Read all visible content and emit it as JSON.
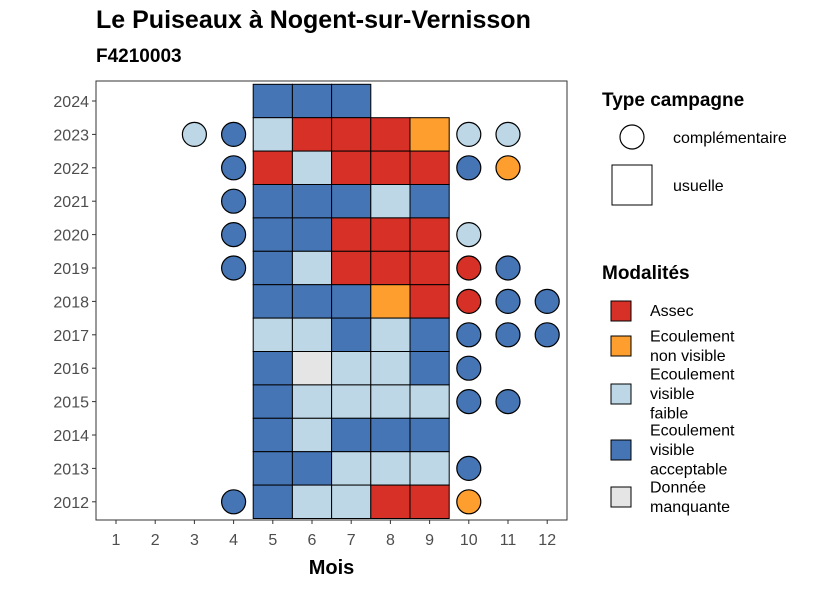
{
  "chart_data": {
    "type": "heatmap",
    "title": "Le Puiseaux à Nogent-sur-Vernisson",
    "subtitle": "F4210003",
    "xlabel": "Mois",
    "ylabel": "",
    "x_ticks": [
      "1",
      "2",
      "3",
      "4",
      "5",
      "6",
      "7",
      "8",
      "9",
      "10",
      "11",
      "12"
    ],
    "y_ticks": [
      "2012",
      "2013",
      "2014",
      "2015",
      "2016",
      "2017",
      "2018",
      "2019",
      "2020",
      "2021",
      "2022",
      "2023",
      "2024"
    ],
    "legend_shape": {
      "title": "Type campagne",
      "items": [
        {
          "label": "complémentaire",
          "shape": "circle"
        },
        {
          "label": "usuelle",
          "shape": "square"
        }
      ]
    },
    "legend_fill": {
      "title": "Modalités",
      "items": [
        {
          "key": "A",
          "lines": [
            "Assec"
          ],
          "color": "#d73027"
        },
        {
          "key": "O",
          "lines": [
            "Ecoulement",
            "non visible"
          ],
          "color": "#fd9e2e"
        },
        {
          "key": "F",
          "lines": [
            "Ecoulement",
            "visible",
            "faible"
          ],
          "color": "#bdd7e7"
        },
        {
          "key": "V",
          "lines": [
            "Ecoulement",
            "visible",
            "acceptable"
          ],
          "color": "#4575b4"
        },
        {
          "key": "M",
          "lines": [
            "Donnée",
            "manquante"
          ],
          "color": "#e5e5e5"
        }
      ]
    },
    "observations": [
      {
        "year": 2024,
        "month": 5,
        "campaign": "usuelle",
        "status": "V"
      },
      {
        "year": 2024,
        "month": 6,
        "campaign": "usuelle",
        "status": "V"
      },
      {
        "year": 2024,
        "month": 7,
        "campaign": "usuelle",
        "status": "V"
      },
      {
        "year": 2023,
        "month": 3,
        "campaign": "complémentaire",
        "status": "F"
      },
      {
        "year": 2023,
        "month": 4,
        "campaign": "complémentaire",
        "status": "V"
      },
      {
        "year": 2023,
        "month": 5,
        "campaign": "usuelle",
        "status": "F"
      },
      {
        "year": 2023,
        "month": 6,
        "campaign": "usuelle",
        "status": "A"
      },
      {
        "year": 2023,
        "month": 7,
        "campaign": "usuelle",
        "status": "A"
      },
      {
        "year": 2023,
        "month": 8,
        "campaign": "usuelle",
        "status": "A"
      },
      {
        "year": 2023,
        "month": 9,
        "campaign": "usuelle",
        "status": "O"
      },
      {
        "year": 2023,
        "month": 10,
        "campaign": "complémentaire",
        "status": "F"
      },
      {
        "year": 2023,
        "month": 11,
        "campaign": "complémentaire",
        "status": "F"
      },
      {
        "year": 2022,
        "month": 4,
        "campaign": "complémentaire",
        "status": "V"
      },
      {
        "year": 2022,
        "month": 5,
        "campaign": "usuelle",
        "status": "A"
      },
      {
        "year": 2022,
        "month": 6,
        "campaign": "usuelle",
        "status": "F"
      },
      {
        "year": 2022,
        "month": 7,
        "campaign": "usuelle",
        "status": "A"
      },
      {
        "year": 2022,
        "month": 8,
        "campaign": "usuelle",
        "status": "A"
      },
      {
        "year": 2022,
        "month": 9,
        "campaign": "usuelle",
        "status": "A"
      },
      {
        "year": 2022,
        "month": 10,
        "campaign": "complémentaire",
        "status": "V"
      },
      {
        "year": 2022,
        "month": 11,
        "campaign": "complémentaire",
        "status": "O"
      },
      {
        "year": 2021,
        "month": 4,
        "campaign": "complémentaire",
        "status": "V"
      },
      {
        "year": 2021,
        "month": 5,
        "campaign": "usuelle",
        "status": "V"
      },
      {
        "year": 2021,
        "month": 6,
        "campaign": "usuelle",
        "status": "V"
      },
      {
        "year": 2021,
        "month": 7,
        "campaign": "usuelle",
        "status": "V"
      },
      {
        "year": 2021,
        "month": 8,
        "campaign": "usuelle",
        "status": "F"
      },
      {
        "year": 2021,
        "month": 9,
        "campaign": "usuelle",
        "status": "V"
      },
      {
        "year": 2020,
        "month": 4,
        "campaign": "complémentaire",
        "status": "V"
      },
      {
        "year": 2020,
        "month": 5,
        "campaign": "usuelle",
        "status": "V"
      },
      {
        "year": 2020,
        "month": 6,
        "campaign": "usuelle",
        "status": "V"
      },
      {
        "year": 2020,
        "month": 7,
        "campaign": "usuelle",
        "status": "A"
      },
      {
        "year": 2020,
        "month": 8,
        "campaign": "usuelle",
        "status": "A"
      },
      {
        "year": 2020,
        "month": 9,
        "campaign": "usuelle",
        "status": "A"
      },
      {
        "year": 2020,
        "month": 10,
        "campaign": "complémentaire",
        "status": "F"
      },
      {
        "year": 2019,
        "month": 4,
        "campaign": "complémentaire",
        "status": "V"
      },
      {
        "year": 2019,
        "month": 5,
        "campaign": "usuelle",
        "status": "V"
      },
      {
        "year": 2019,
        "month": 6,
        "campaign": "usuelle",
        "status": "F"
      },
      {
        "year": 2019,
        "month": 7,
        "campaign": "usuelle",
        "status": "A"
      },
      {
        "year": 2019,
        "month": 8,
        "campaign": "usuelle",
        "status": "A"
      },
      {
        "year": 2019,
        "month": 9,
        "campaign": "usuelle",
        "status": "A"
      },
      {
        "year": 2019,
        "month": 10,
        "campaign": "complémentaire",
        "status": "A"
      },
      {
        "year": 2019,
        "month": 11,
        "campaign": "complémentaire",
        "status": "V"
      },
      {
        "year": 2018,
        "month": 5,
        "campaign": "usuelle",
        "status": "V"
      },
      {
        "year": 2018,
        "month": 6,
        "campaign": "usuelle",
        "status": "V"
      },
      {
        "year": 2018,
        "month": 7,
        "campaign": "usuelle",
        "status": "V"
      },
      {
        "year": 2018,
        "month": 8,
        "campaign": "usuelle",
        "status": "O"
      },
      {
        "year": 2018,
        "month": 9,
        "campaign": "usuelle",
        "status": "A"
      },
      {
        "year": 2018,
        "month": 10,
        "campaign": "complémentaire",
        "status": "A"
      },
      {
        "year": 2018,
        "month": 11,
        "campaign": "complémentaire",
        "status": "V"
      },
      {
        "year": 2018,
        "month": 12,
        "campaign": "complémentaire",
        "status": "V"
      },
      {
        "year": 2017,
        "month": 5,
        "campaign": "usuelle",
        "status": "F"
      },
      {
        "year": 2017,
        "month": 6,
        "campaign": "usuelle",
        "status": "F"
      },
      {
        "year": 2017,
        "month": 7,
        "campaign": "usuelle",
        "status": "V"
      },
      {
        "year": 2017,
        "month": 8,
        "campaign": "usuelle",
        "status": "F"
      },
      {
        "year": 2017,
        "month": 9,
        "campaign": "usuelle",
        "status": "V"
      },
      {
        "year": 2017,
        "month": 10,
        "campaign": "complémentaire",
        "status": "V"
      },
      {
        "year": 2017,
        "month": 11,
        "campaign": "complémentaire",
        "status": "V"
      },
      {
        "year": 2017,
        "month": 12,
        "campaign": "complémentaire",
        "status": "V"
      },
      {
        "year": 2016,
        "month": 5,
        "campaign": "usuelle",
        "status": "V"
      },
      {
        "year": 2016,
        "month": 6,
        "campaign": "usuelle",
        "status": "M"
      },
      {
        "year": 2016,
        "month": 7,
        "campaign": "usuelle",
        "status": "F"
      },
      {
        "year": 2016,
        "month": 8,
        "campaign": "usuelle",
        "status": "F"
      },
      {
        "year": 2016,
        "month": 9,
        "campaign": "usuelle",
        "status": "V"
      },
      {
        "year": 2016,
        "month": 10,
        "campaign": "complémentaire",
        "status": "V"
      },
      {
        "year": 2015,
        "month": 5,
        "campaign": "usuelle",
        "status": "V"
      },
      {
        "year": 2015,
        "month": 6,
        "campaign": "usuelle",
        "status": "F"
      },
      {
        "year": 2015,
        "month": 7,
        "campaign": "usuelle",
        "status": "F"
      },
      {
        "year": 2015,
        "month": 8,
        "campaign": "usuelle",
        "status": "F"
      },
      {
        "year": 2015,
        "month": 9,
        "campaign": "usuelle",
        "status": "F"
      },
      {
        "year": 2015,
        "month": 10,
        "campaign": "complémentaire",
        "status": "V"
      },
      {
        "year": 2015,
        "month": 11,
        "campaign": "complémentaire",
        "status": "V"
      },
      {
        "year": 2014,
        "month": 5,
        "campaign": "usuelle",
        "status": "V"
      },
      {
        "year": 2014,
        "month": 6,
        "campaign": "usuelle",
        "status": "F"
      },
      {
        "year": 2014,
        "month": 7,
        "campaign": "usuelle",
        "status": "V"
      },
      {
        "year": 2014,
        "month": 8,
        "campaign": "usuelle",
        "status": "V"
      },
      {
        "year": 2014,
        "month": 9,
        "campaign": "usuelle",
        "status": "V"
      },
      {
        "year": 2013,
        "month": 5,
        "campaign": "usuelle",
        "status": "V"
      },
      {
        "year": 2013,
        "month": 6,
        "campaign": "usuelle",
        "status": "V"
      },
      {
        "year": 2013,
        "month": 7,
        "campaign": "usuelle",
        "status": "F"
      },
      {
        "year": 2013,
        "month": 8,
        "campaign": "usuelle",
        "status": "F"
      },
      {
        "year": 2013,
        "month": 9,
        "campaign": "usuelle",
        "status": "F"
      },
      {
        "year": 2013,
        "month": 10,
        "campaign": "complémentaire",
        "status": "V"
      },
      {
        "year": 2012,
        "month": 4,
        "campaign": "complémentaire",
        "status": "V"
      },
      {
        "year": 2012,
        "month": 5,
        "campaign": "usuelle",
        "status": "V"
      },
      {
        "year": 2012,
        "month": 6,
        "campaign": "usuelle",
        "status": "F"
      },
      {
        "year": 2012,
        "month": 7,
        "campaign": "usuelle",
        "status": "F"
      },
      {
        "year": 2012,
        "month": 8,
        "campaign": "usuelle",
        "status": "A"
      },
      {
        "year": 2012,
        "month": 9,
        "campaign": "usuelle",
        "status": "A"
      },
      {
        "year": 2012,
        "month": 10,
        "campaign": "complémentaire",
        "status": "O"
      }
    ]
  }
}
